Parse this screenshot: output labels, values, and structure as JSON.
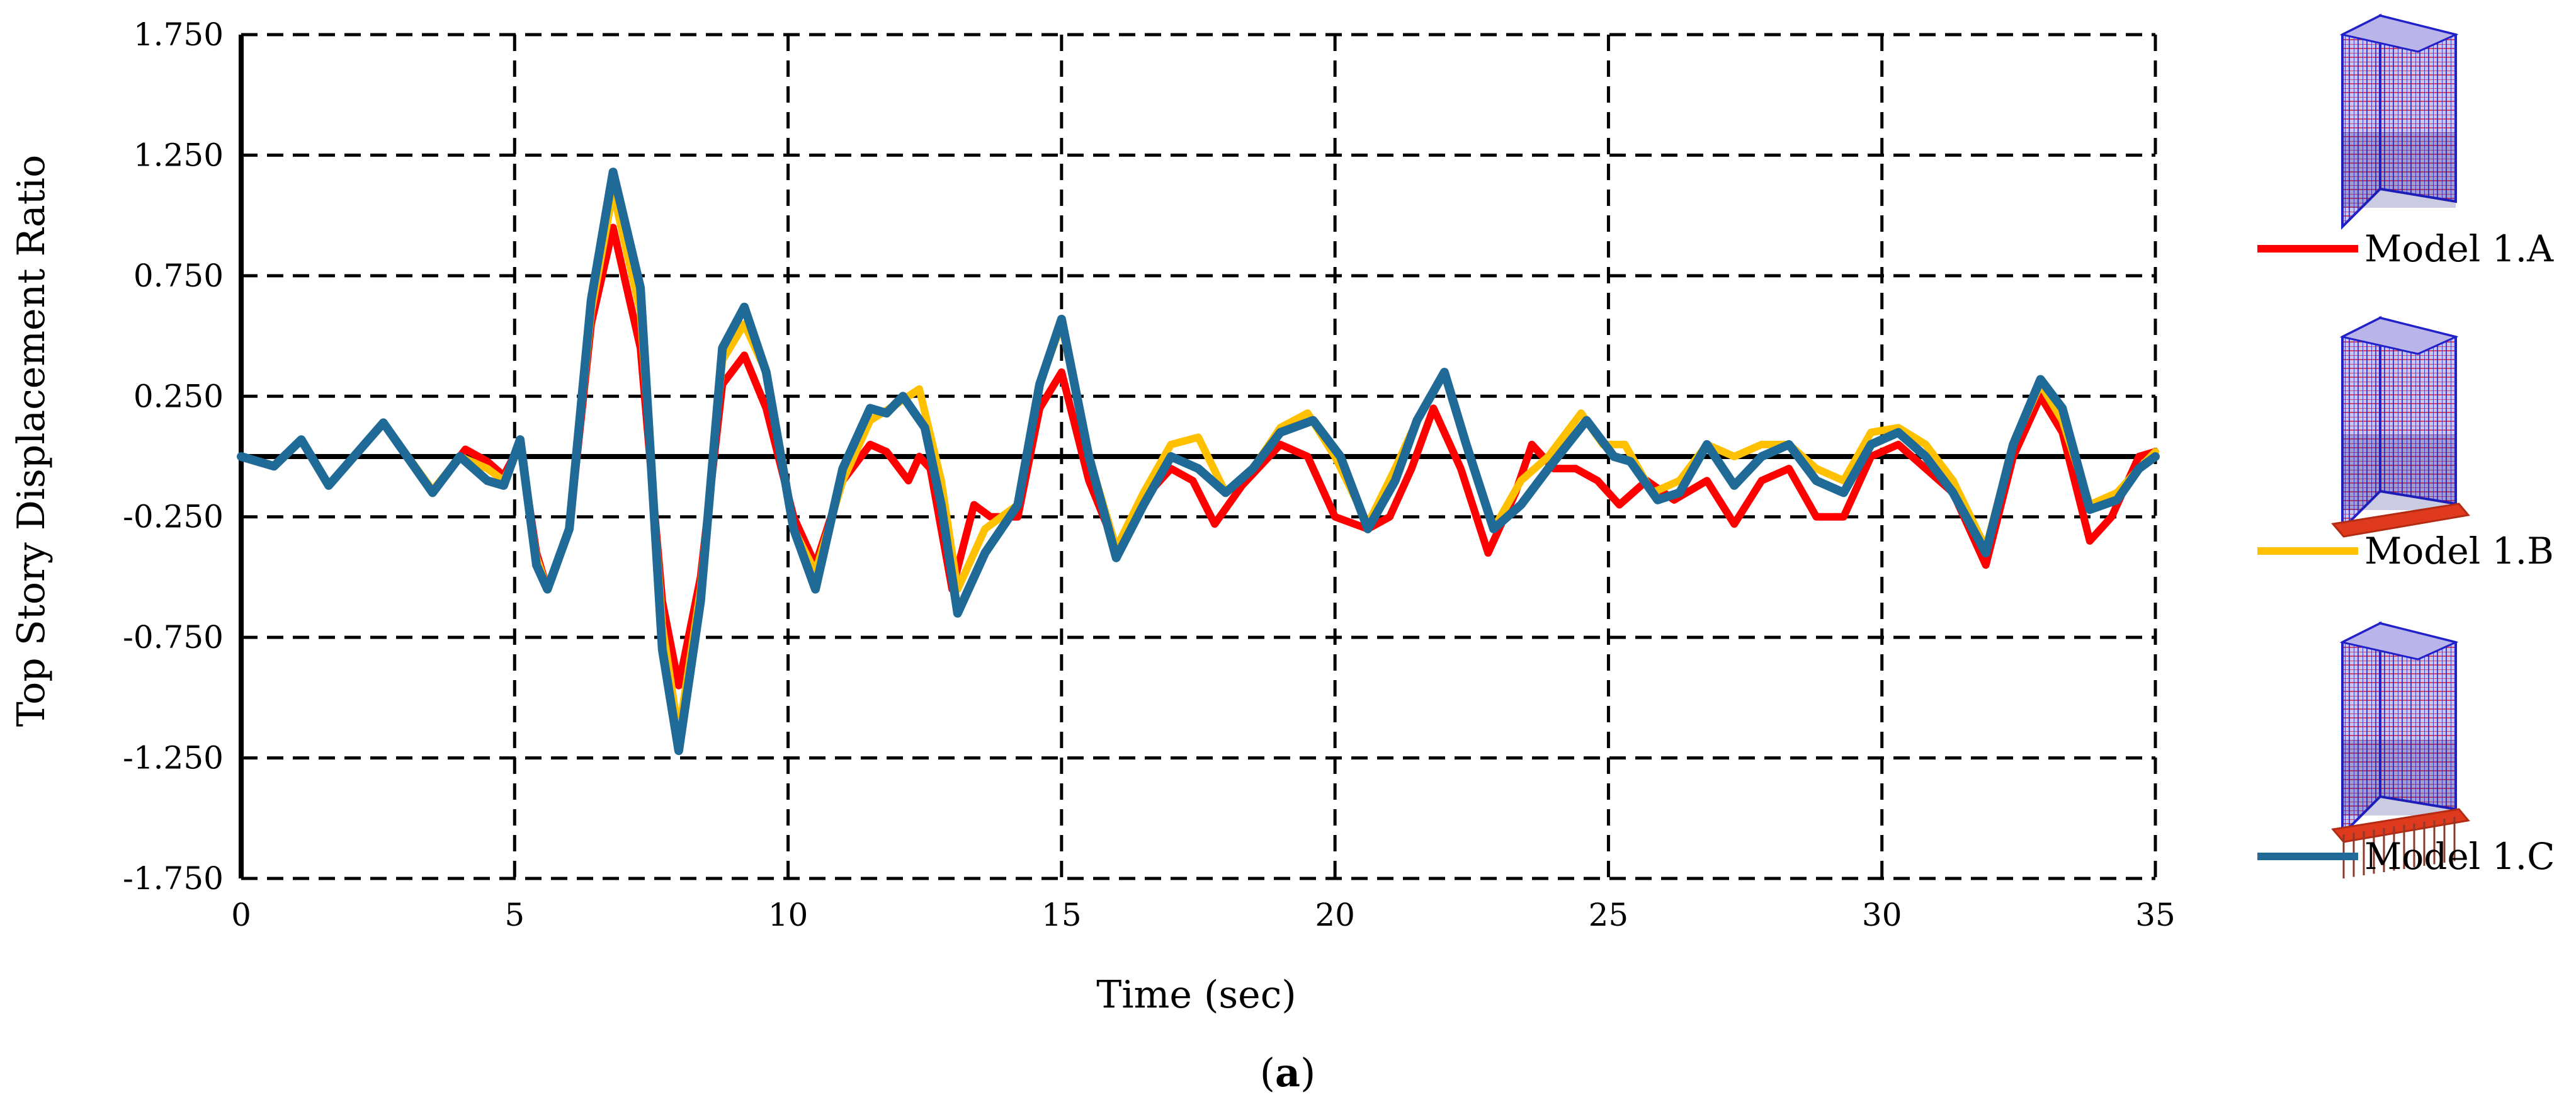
{
  "chart_data": {
    "type": "line",
    "xlabel": "Time (sec)",
    "ylabel": "Top Story Displacement Ratio",
    "caption_letter": "a",
    "xlim": [
      0,
      35
    ],
    "ylim": [
      -1.75,
      1.75
    ],
    "x_ticks": [
      "0",
      "5",
      "10",
      "15",
      "20",
      "25",
      "30",
      "35"
    ],
    "y_ticks": [
      "1.750",
      "1.250",
      "0.750",
      "0.250",
      "-0.250",
      "-0.750",
      "-1.250",
      "-1.750"
    ],
    "grid": true,
    "legend_position": "right",
    "series": [
      {
        "name": "Model 1.A",
        "color": "#ff0000",
        "icon": "building-model-icon",
        "points": [
          [
            0,
            0
          ],
          [
            0.6,
            -0.04
          ],
          [
            1.1,
            0.07
          ],
          [
            1.6,
            -0.12
          ],
          [
            2.6,
            0.14
          ],
          [
            3.5,
            -0.15
          ],
          [
            4.1,
            0.03
          ],
          [
            4.5,
            -0.02
          ],
          [
            4.8,
            -0.08
          ],
          [
            5.1,
            0.05
          ],
          [
            5.4,
            -0.4
          ],
          [
            5.6,
            -0.55
          ],
          [
            6.0,
            -0.3
          ],
          [
            6.4,
            0.55
          ],
          [
            6.8,
            0.95
          ],
          [
            7.3,
            0.45
          ],
          [
            7.7,
            -0.6
          ],
          [
            8.0,
            -0.95
          ],
          [
            8.4,
            -0.5
          ],
          [
            8.8,
            0.3
          ],
          [
            9.2,
            0.42
          ],
          [
            9.6,
            0.2
          ],
          [
            10.1,
            -0.25
          ],
          [
            10.5,
            -0.45
          ],
          [
            11.0,
            -0.1
          ],
          [
            11.5,
            0.05
          ],
          [
            11.8,
            0.02
          ],
          [
            12.2,
            -0.1
          ],
          [
            12.4,
            0.0
          ],
          [
            12.6,
            -0.05
          ],
          [
            13.0,
            -0.55
          ],
          [
            13.4,
            -0.2
          ],
          [
            13.7,
            -0.25
          ],
          [
            14.2,
            -0.25
          ],
          [
            14.6,
            0.2
          ],
          [
            15.0,
            0.35
          ],
          [
            15.5,
            -0.1
          ],
          [
            16.0,
            -0.38
          ],
          [
            16.4,
            -0.2
          ],
          [
            17.0,
            -0.05
          ],
          [
            17.4,
            -0.1
          ],
          [
            17.8,
            -0.28
          ],
          [
            18.3,
            -0.12
          ],
          [
            19.0,
            0.05
          ],
          [
            19.5,
            0.0
          ],
          [
            20.0,
            -0.25
          ],
          [
            20.6,
            -0.3
          ],
          [
            21.0,
            -0.25
          ],
          [
            21.4,
            -0.05
          ],
          [
            21.8,
            0.2
          ],
          [
            22.3,
            -0.05
          ],
          [
            22.8,
            -0.4
          ],
          [
            23.3,
            -0.15
          ],
          [
            23.6,
            0.05
          ],
          [
            24.0,
            -0.05
          ],
          [
            24.4,
            -0.05
          ],
          [
            24.8,
            -0.1
          ],
          [
            25.2,
            -0.2
          ],
          [
            25.7,
            -0.1
          ],
          [
            26.2,
            -0.18
          ],
          [
            26.8,
            -0.1
          ],
          [
            27.3,
            -0.28
          ],
          [
            27.8,
            -0.1
          ],
          [
            28.3,
            -0.05
          ],
          [
            28.8,
            -0.25
          ],
          [
            29.3,
            -0.25
          ],
          [
            29.8,
            0.0
          ],
          [
            30.3,
            0.05
          ],
          [
            30.8,
            -0.05
          ],
          [
            31.3,
            -0.15
          ],
          [
            31.9,
            -0.45
          ],
          [
            32.4,
            0.0
          ],
          [
            32.9,
            0.25
          ],
          [
            33.3,
            0.1
          ],
          [
            33.8,
            -0.35
          ],
          [
            34.2,
            -0.25
          ],
          [
            34.7,
            0.0
          ],
          [
            35,
            0.02
          ]
        ]
      },
      {
        "name": "Model 1.B",
        "color": "#ffc000",
        "icon": "building-model-icon",
        "points": [
          [
            0,
            0
          ],
          [
            0.6,
            -0.04
          ],
          [
            1.1,
            0.07
          ],
          [
            1.6,
            -0.12
          ],
          [
            2.6,
            0.14
          ],
          [
            3.5,
            -0.14
          ],
          [
            4.0,
            0.0
          ],
          [
            4.5,
            -0.05
          ],
          [
            4.8,
            -0.1
          ],
          [
            5.1,
            0.05
          ],
          [
            5.4,
            -0.42
          ],
          [
            5.6,
            -0.55
          ],
          [
            6.0,
            -0.3
          ],
          [
            6.4,
            0.6
          ],
          [
            6.8,
            1.1
          ],
          [
            7.3,
            0.6
          ],
          [
            7.7,
            -0.7
          ],
          [
            8.0,
            -1.15
          ],
          [
            8.4,
            -0.55
          ],
          [
            8.8,
            0.4
          ],
          [
            9.2,
            0.55
          ],
          [
            9.6,
            0.35
          ],
          [
            10.1,
            -0.3
          ],
          [
            10.5,
            -0.48
          ],
          [
            11.0,
            -0.1
          ],
          [
            11.5,
            0.15
          ],
          [
            12.0,
            0.22
          ],
          [
            12.4,
            0.28
          ],
          [
            12.8,
            -0.1
          ],
          [
            13.1,
            -0.55
          ],
          [
            13.6,
            -0.3
          ],
          [
            14.2,
            -0.2
          ],
          [
            14.6,
            0.3
          ],
          [
            15.0,
            0.55
          ],
          [
            15.5,
            0.0
          ],
          [
            16.0,
            -0.38
          ],
          [
            16.5,
            -0.15
          ],
          [
            17.0,
            0.05
          ],
          [
            17.5,
            0.08
          ],
          [
            18.0,
            -0.15
          ],
          [
            18.5,
            -0.05
          ],
          [
            19.0,
            0.12
          ],
          [
            19.5,
            0.18
          ],
          [
            20.0,
            0.0
          ],
          [
            20.6,
            -0.28
          ],
          [
            21.1,
            -0.05
          ],
          [
            21.5,
            0.15
          ],
          [
            22.0,
            0.35
          ],
          [
            22.4,
            0.05
          ],
          [
            22.9,
            -0.3
          ],
          [
            23.4,
            -0.1
          ],
          [
            23.9,
            0.0
          ],
          [
            24.5,
            0.18
          ],
          [
            24.9,
            0.05
          ],
          [
            25.3,
            0.05
          ],
          [
            25.8,
            -0.15
          ],
          [
            26.3,
            -0.1
          ],
          [
            26.8,
            0.05
          ],
          [
            27.3,
            0.0
          ],
          [
            27.8,
            0.05
          ],
          [
            28.3,
            0.05
          ],
          [
            28.8,
            -0.05
          ],
          [
            29.3,
            -0.1
          ],
          [
            29.8,
            0.1
          ],
          [
            30.3,
            0.12
          ],
          [
            30.8,
            0.05
          ],
          [
            31.3,
            -0.1
          ],
          [
            31.9,
            -0.38
          ],
          [
            32.4,
            0.05
          ],
          [
            32.9,
            0.3
          ],
          [
            33.3,
            0.15
          ],
          [
            33.8,
            -0.2
          ],
          [
            34.3,
            -0.15
          ],
          [
            34.7,
            -0.05
          ],
          [
            35,
            0.02
          ]
        ]
      },
      {
        "name": "Model 1.C",
        "color": "#1f6a96",
        "icon": "building-model-icon",
        "points": [
          [
            0,
            0
          ],
          [
            0.6,
            -0.04
          ],
          [
            1.1,
            0.07
          ],
          [
            1.6,
            -0.12
          ],
          [
            2.6,
            0.14
          ],
          [
            3.5,
            -0.15
          ],
          [
            4.0,
            0.0
          ],
          [
            4.5,
            -0.1
          ],
          [
            4.8,
            -0.12
          ],
          [
            5.1,
            0.07
          ],
          [
            5.4,
            -0.45
          ],
          [
            5.6,
            -0.55
          ],
          [
            6.0,
            -0.3
          ],
          [
            6.4,
            0.65
          ],
          [
            6.8,
            1.18
          ],
          [
            7.3,
            0.7
          ],
          [
            7.7,
            -0.8
          ],
          [
            8.0,
            -1.22
          ],
          [
            8.4,
            -0.6
          ],
          [
            8.8,
            0.45
          ],
          [
            9.2,
            0.62
          ],
          [
            9.6,
            0.35
          ],
          [
            10.1,
            -0.3
          ],
          [
            10.5,
            -0.55
          ],
          [
            11.0,
            -0.05
          ],
          [
            11.5,
            0.2
          ],
          [
            11.8,
            0.18
          ],
          [
            12.1,
            0.25
          ],
          [
            12.5,
            0.12
          ],
          [
            12.8,
            -0.2
          ],
          [
            13.1,
            -0.65
          ],
          [
            13.6,
            -0.4
          ],
          [
            14.2,
            -0.2
          ],
          [
            14.6,
            0.3
          ],
          [
            15.0,
            0.57
          ],
          [
            15.5,
            0.0
          ],
          [
            16.0,
            -0.42
          ],
          [
            16.5,
            -0.2
          ],
          [
            17.0,
            0.0
          ],
          [
            17.5,
            -0.05
          ],
          [
            18.0,
            -0.15
          ],
          [
            18.5,
            -0.05
          ],
          [
            19.0,
            0.1
          ],
          [
            19.6,
            0.15
          ],
          [
            20.1,
            0.0
          ],
          [
            20.6,
            -0.3
          ],
          [
            21.1,
            -0.1
          ],
          [
            21.5,
            0.15
          ],
          [
            22.0,
            0.35
          ],
          [
            22.4,
            0.05
          ],
          [
            22.9,
            -0.3
          ],
          [
            23.4,
            -0.2
          ],
          [
            23.9,
            -0.05
          ],
          [
            24.6,
            0.15
          ],
          [
            25.1,
            0.0
          ],
          [
            25.4,
            -0.02
          ],
          [
            25.9,
            -0.18
          ],
          [
            26.3,
            -0.15
          ],
          [
            26.8,
            0.05
          ],
          [
            27.3,
            -0.12
          ],
          [
            27.8,
            0.0
          ],
          [
            28.3,
            0.05
          ],
          [
            28.8,
            -0.1
          ],
          [
            29.3,
            -0.15
          ],
          [
            29.8,
            0.05
          ],
          [
            30.3,
            0.1
          ],
          [
            30.8,
            0.0
          ],
          [
            31.3,
            -0.15
          ],
          [
            31.9,
            -0.4
          ],
          [
            32.4,
            0.05
          ],
          [
            32.9,
            0.32
          ],
          [
            33.3,
            0.2
          ],
          [
            33.8,
            -0.22
          ],
          [
            34.3,
            -0.18
          ],
          [
            34.7,
            -0.05
          ],
          [
            35,
            0.0
          ]
        ]
      }
    ]
  }
}
